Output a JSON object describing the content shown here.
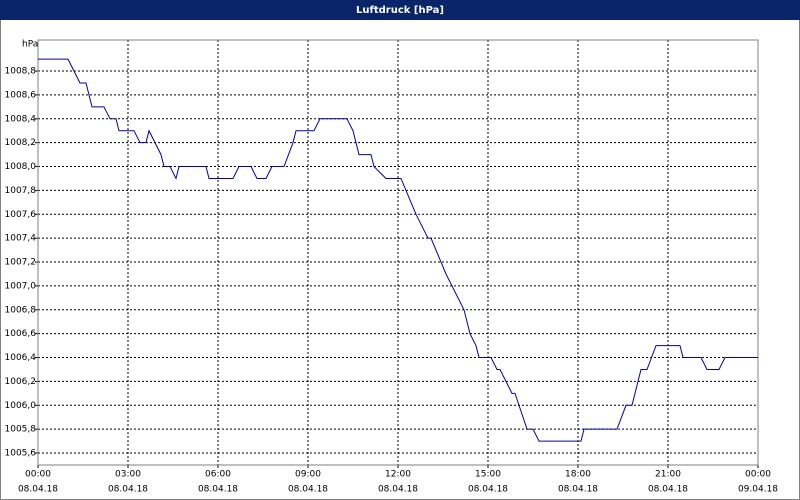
{
  "chart_data": {
    "type": "line",
    "title": "Luftdruck [hPa]",
    "y_label": "hPa",
    "x": [
      0,
      1,
      1.4,
      1.6,
      1.8,
      2.2,
      2.4,
      2.6,
      2.7,
      3.2,
      3.4,
      3.6,
      3.7,
      4.1,
      4.2,
      4.4,
      4.6,
      4.7,
      5.6,
      5.7,
      6.5,
      6.7,
      7.1,
      7.3,
      7.6,
      7.8,
      8.2,
      8.5,
      8.6,
      9.2,
      9.4,
      10.3,
      10.5,
      10.7,
      11.1,
      11.2,
      11.6,
      12.1,
      12.6,
      13.0,
      13.1,
      13.6,
      13.8,
      14.0,
      14.2,
      14.4,
      14.6,
      14.7,
      15.1,
      15.3,
      15.4,
      15.8,
      15.9,
      16.3,
      16.5,
      16.7,
      18.1,
      18.2,
      19.3,
      19.6,
      19.8,
      20.1,
      20.3,
      20.6,
      21.4,
      21.5,
      22.1,
      22.3,
      22.7,
      22.9,
      24
    ],
    "series": [
      {
        "name": "Luftdruck",
        "color": "#0000b0",
        "values": [
          1008.9,
          1008.9,
          1008.7,
          1008.7,
          1008.5,
          1008.5,
          1008.4,
          1008.4,
          1008.3,
          1008.3,
          1008.2,
          1008.2,
          1008.3,
          1008.1,
          1008.0,
          1008.0,
          1007.9,
          1008.0,
          1008.0,
          1007.9,
          1007.9,
          1008.0,
          1008.0,
          1007.9,
          1007.9,
          1008.0,
          1008.0,
          1008.2,
          1008.3,
          1008.3,
          1008.4,
          1008.4,
          1008.3,
          1008.1,
          1008.1,
          1008.0,
          1007.9,
          1007.9,
          1007.6,
          1007.4,
          1007.4,
          1007.1,
          1007.0,
          1006.9,
          1006.8,
          1006.6,
          1006.5,
          1006.4,
          1006.4,
          1006.3,
          1006.3,
          1006.1,
          1006.1,
          1005.8,
          1005.8,
          1005.7,
          1005.7,
          1005.8,
          1005.8,
          1006.0,
          1006.0,
          1006.3,
          1006.3,
          1006.5,
          1006.5,
          1006.4,
          1006.4,
          1006.3,
          1006.3,
          1006.4,
          1006.4
        ]
      }
    ],
    "xlim": [
      0,
      24
    ],
    "xticks": [
      {
        "value": 0,
        "label": "00:00",
        "date": "08.04.18"
      },
      {
        "value": 3,
        "label": "03:00",
        "date": "08.04.18"
      },
      {
        "value": 6,
        "label": "06:00",
        "date": "08.04.18"
      },
      {
        "value": 9,
        "label": "09:00",
        "date": "08.04.18"
      },
      {
        "value": 12,
        "label": "12:00",
        "date": "08.04.18"
      },
      {
        "value": 15,
        "label": "15:00",
        "date": "08.04.18"
      },
      {
        "value": 18,
        "label": "18:00",
        "date": "08.04.18"
      },
      {
        "value": 21,
        "label": "21:00",
        "date": "08.04.18"
      },
      {
        "value": 24,
        "label": "00:00",
        "date": "09.04.18"
      }
    ],
    "ylim": [
      1005.5,
      1009.06
    ],
    "yticks": [
      {
        "value": 1005.6,
        "label": "1005,6"
      },
      {
        "value": 1005.8,
        "label": "1005,8"
      },
      {
        "value": 1006.0,
        "label": "1006,0"
      },
      {
        "value": 1006.2,
        "label": "1006,2"
      },
      {
        "value": 1006.4,
        "label": "1006,4"
      },
      {
        "value": 1006.6,
        "label": "1006,6"
      },
      {
        "value": 1006.8,
        "label": "1006,8"
      },
      {
        "value": 1007.0,
        "label": "1007,0"
      },
      {
        "value": 1007.2,
        "label": "1007,2"
      },
      {
        "value": 1007.4,
        "label": "1007,4"
      },
      {
        "value": 1007.6,
        "label": "1007,6"
      },
      {
        "value": 1007.8,
        "label": "1007,8"
      },
      {
        "value": 1008.0,
        "label": "1008,0"
      },
      {
        "value": 1008.2,
        "label": "1008,2"
      },
      {
        "value": 1008.4,
        "label": "1008,4"
      },
      {
        "value": 1008.6,
        "label": "1008,6"
      },
      {
        "value": 1008.8,
        "label": "1008,8"
      }
    ],
    "grid": true
  }
}
